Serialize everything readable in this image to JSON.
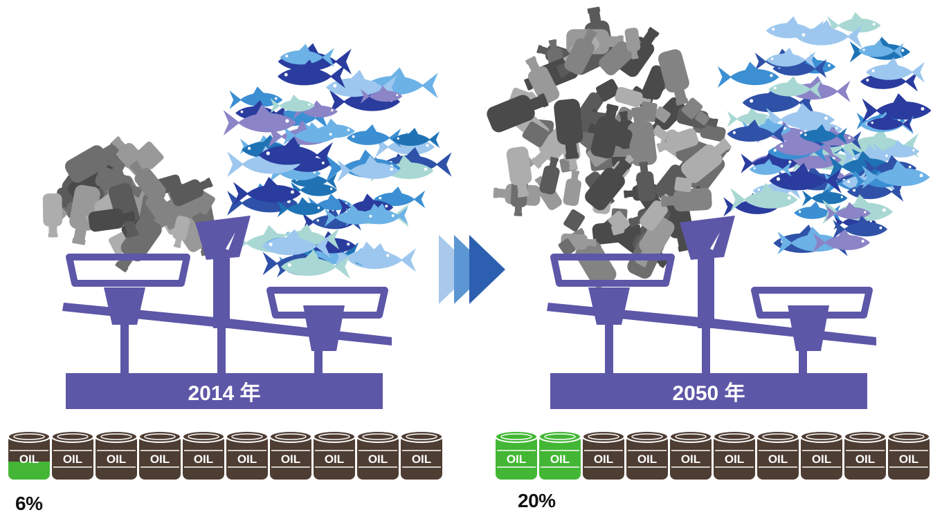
{
  "colors": {
    "scale": "#5d57a8",
    "barrel_dark": "#4e3d33",
    "barrel_green": "#43b735",
    "plastic": [
      "#5a5a5a",
      "#6e6e6e",
      "#838383",
      "#999999",
      "#4a4a4a",
      "#adadad"
    ],
    "fish": [
      "#2a3c9e",
      "#1f73b5",
      "#3c8fd3",
      "#6cb2e6",
      "#9dc7ee",
      "#8b84c7",
      "#a9d8d4",
      "#2f52a8"
    ],
    "arrow": [
      "#a9c8ea",
      "#5c97d4",
      "#2c5fb0"
    ]
  },
  "panels": [
    {
      "year_label": "2014 年",
      "oil_label": "OIL",
      "barrels_total": 10,
      "share_percent": 6,
      "share_text": "6%",
      "share_icon": "partially-filled-green-barrel"
    },
    {
      "year_label": "2050 年",
      "oil_label": "OIL",
      "barrels_total": 10,
      "share_percent": 20,
      "share_text": "20%",
      "share_icon": "two-green-barrels"
    }
  ],
  "arrow_icon": "triple-chevron-right-icon"
}
